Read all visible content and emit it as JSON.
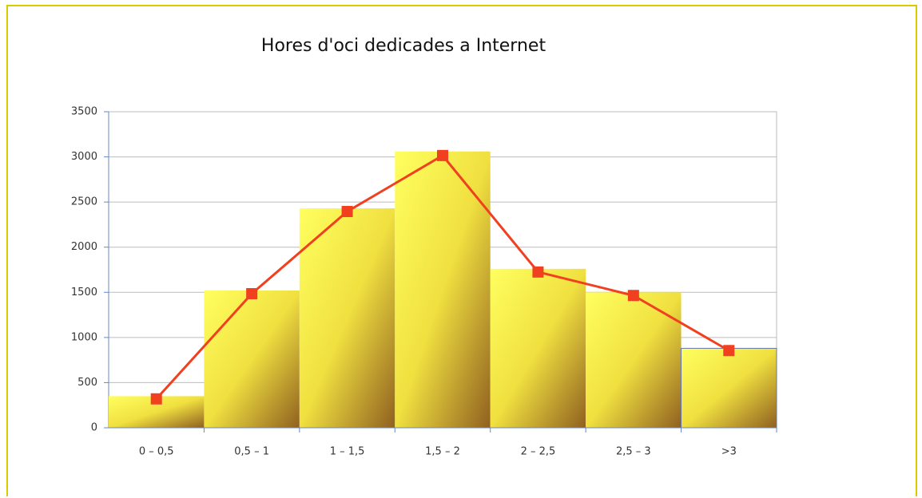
{
  "chart_data": {
    "type": "bar",
    "title": "Hores d'oci dedicades a Internet",
    "categories": [
      "0 – 0,5",
      "0,5 – 1",
      "1 – 1,5",
      "1,5 – 2",
      "2 – 2,5",
      "2,5 – 3",
      ">3"
    ],
    "series": [
      {
        "type": "bar",
        "color": "#ffff60",
        "values": [
          350,
          1520,
          2430,
          3060,
          1760,
          1500,
          880
        ]
      },
      {
        "type": "line",
        "color": "#f04020",
        "values": [
          320,
          1485,
          2395,
          3015,
          1725,
          1465,
          855
        ]
      }
    ],
    "ylim": [
      0,
      3500
    ],
    "yticks": [
      0,
      500,
      1000,
      1500,
      2000,
      2500,
      3000,
      3500
    ],
    "grid": true
  }
}
